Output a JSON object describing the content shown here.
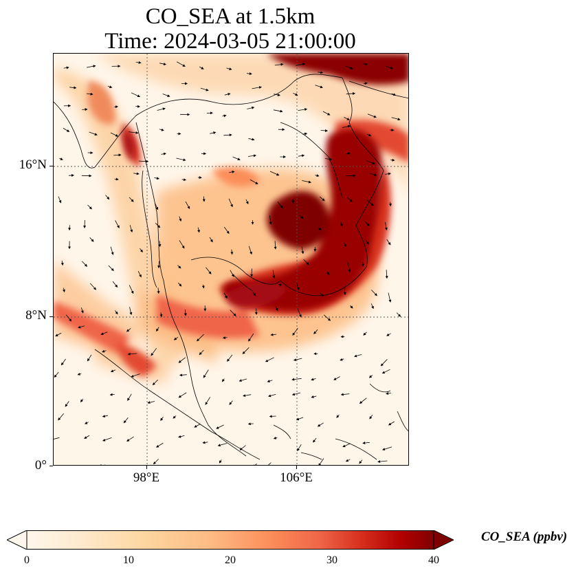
{
  "title": {
    "line1": "CO_SEA at 1.5km",
    "line2": "Time: 2024-03-05 21:00:00"
  },
  "map": {
    "lat_labels": [
      "16°N",
      "8°N",
      "0°"
    ],
    "lon_labels": [
      "98°E",
      "106°E"
    ],
    "lon_range": [
      93,
      112
    ],
    "lat_range": [
      0,
      22
    ],
    "gridlines": "dotted",
    "colormap": "OrRd",
    "colors": {
      "low": "#fff7ec",
      "mid": "#fc8d59",
      "high": "#7f0000"
    }
  },
  "colorbar": {
    "label": "CO_SEA (ppbv)",
    "ticks": [
      "0",
      "10",
      "20",
      "30",
      "40"
    ],
    "range": [
      0,
      40
    ],
    "extend": "both"
  }
}
